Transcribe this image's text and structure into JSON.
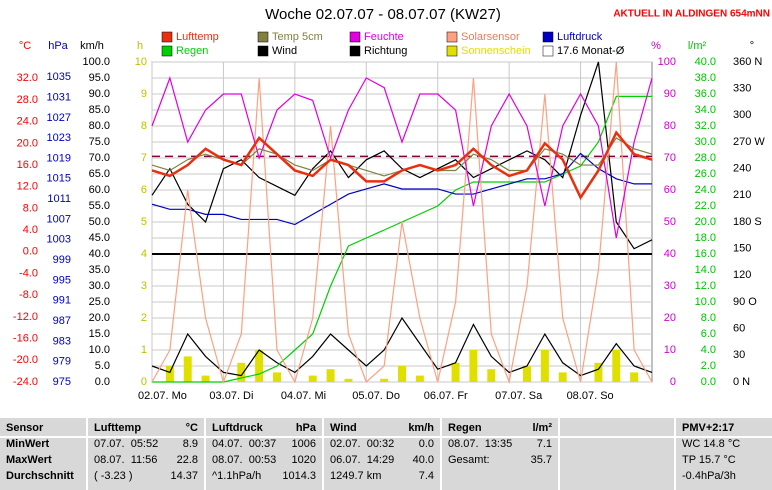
{
  "chart_data": {
    "type": "line",
    "title": "Woche 02.07.07 - 08.07.07 (KW27)",
    "subtitle": "AKTUELL IN ALDINGEN 654mNN",
    "grid": true,
    "xlim": [
      0,
      7
    ],
    "xticks": [
      {
        "value": 0,
        "label": "02.07. Mo"
      },
      {
        "value": 1,
        "label": "03.07. Di"
      },
      {
        "value": 2,
        "label": "04.07. Mi"
      },
      {
        "value": 3,
        "label": "05.07. Do"
      },
      {
        "value": 4,
        "label": "06.07. Fr"
      },
      {
        "value": 5,
        "label": "07.07. Sa"
      },
      {
        "value": 6,
        "label": "08.07. So"
      }
    ],
    "x": [
      0,
      0.25,
      0.5,
      0.75,
      1,
      1.25,
      1.5,
      1.75,
      2,
      2.25,
      2.5,
      2.75,
      3,
      3.25,
      3.5,
      3.75,
      4,
      4.25,
      4.5,
      4.75,
      5,
      5.25,
      5.5,
      5.75,
      6,
      6.25,
      6.5,
      6.75,
      7
    ],
    "axes": [
      {
        "label": "°C",
        "color": "#ff0000",
        "lim": [
          -24,
          35
        ],
        "ticks": [
          {
            "value": 32,
            "label": "32.0"
          },
          {
            "value": 28,
            "label": "28.0"
          },
          {
            "value": 24,
            "label": "24.0"
          },
          {
            "value": 20,
            "label": "20.0"
          },
          {
            "value": 16,
            "label": "16.0"
          },
          {
            "value": 12,
            "label": "12.0"
          },
          {
            "value": 8,
            "label": "8.0"
          },
          {
            "value": 4,
            "label": "4.0"
          },
          {
            "value": 0,
            "label": "0.0"
          },
          {
            "value": -4,
            "label": "-4.0"
          },
          {
            "value": -8,
            "label": "-8.0"
          },
          {
            "value": -12,
            "label": "-12.0"
          },
          {
            "value": -16,
            "label": "-16.0"
          },
          {
            "value": -20,
            "label": "-20.0"
          },
          {
            "value": -24,
            "label": "-24.0"
          }
        ]
      },
      {
        "label": "hPa",
        "color": "#0000c0",
        "lim": [
          975,
          1038
        ],
        "ticks": [
          1035,
          1031,
          1027,
          1023,
          1019,
          1015,
          1011,
          1007,
          1003,
          999,
          995,
          991,
          987,
          983,
          979,
          975
        ]
      },
      {
        "label": "km/h",
        "color": "#000000",
        "lim": [
          0,
          100
        ],
        "ticks": [
          {
            "value": 100,
            "label": "100.0"
          },
          {
            "value": 95,
            "label": "95.0"
          },
          {
            "value": 90,
            "label": "90.0"
          },
          {
            "value": 85,
            "label": "85.0"
          },
          {
            "value": 80,
            "label": "80.0"
          },
          {
            "value": 75,
            "label": "75.0"
          },
          {
            "value": 70,
            "label": "70.0"
          },
          {
            "value": 65,
            "label": "65.0"
          },
          {
            "value": 60,
            "label": "60.0"
          },
          {
            "value": 55,
            "label": "55.0"
          },
          {
            "value": 50,
            "label": "50.0"
          },
          {
            "value": 45,
            "label": "45.0"
          },
          {
            "value": 40,
            "label": "40.0"
          },
          {
            "value": 35,
            "label": "35.0"
          },
          {
            "value": 30,
            "label": "30.0"
          },
          {
            "value": 25,
            "label": "25.0"
          },
          {
            "value": 20,
            "label": "20.0"
          },
          {
            "value": 15,
            "label": "15.0"
          },
          {
            "value": 10,
            "label": "10.0"
          },
          {
            "value": 5,
            "label": "5.0"
          },
          {
            "value": 0,
            "label": "0.0"
          }
        ]
      },
      {
        "label": "h",
        "color": "#c0c000",
        "lim": [
          0,
          10
        ],
        "ticks": [
          10,
          9,
          8,
          7,
          6,
          5,
          4,
          3,
          2,
          1,
          0
        ]
      },
      {
        "label": "%",
        "color": "#d000d0",
        "lim": [
          0,
          100
        ],
        "ticks": [
          100,
          90,
          80,
          70,
          60,
          50,
          40,
          30,
          20,
          10,
          0
        ]
      },
      {
        "label": "l/m²",
        "color": "#00c000",
        "lim": [
          0,
          40
        ],
        "ticks": [
          {
            "value": 40,
            "label": "40.0"
          },
          {
            "value": 38,
            "label": "38.0"
          },
          {
            "value": 36,
            "label": "36.0"
          },
          {
            "value": 34,
            "label": "34.0"
          },
          {
            "value": 32,
            "label": "32.0"
          },
          {
            "value": 30,
            "label": "30.0"
          },
          {
            "value": 28,
            "label": "28.0"
          },
          {
            "value": 26,
            "label": "26.0"
          },
          {
            "value": 24,
            "label": "24.0"
          },
          {
            "value": 22,
            "label": "22.0"
          },
          {
            "value": 20,
            "label": "20.0"
          },
          {
            "value": 18,
            "label": "18.0"
          },
          {
            "value": 16,
            "label": "16.0"
          },
          {
            "value": 14,
            "label": "14.0"
          },
          {
            "value": 12,
            "label": "12.0"
          },
          {
            "value": 10,
            "label": "10.0"
          },
          {
            "value": 8,
            "label": "8.0"
          },
          {
            "value": 6,
            "label": "6.0"
          },
          {
            "value": 4,
            "label": "4.0"
          },
          {
            "value": 2,
            "label": "2.0"
          },
          {
            "value": 0,
            "label": "0.0"
          }
        ]
      },
      {
        "label": "°",
        "color": "#000000",
        "lim": [
          0,
          360
        ],
        "ticks": [
          {
            "value": 360,
            "label": "360 N"
          },
          330,
          300,
          {
            "value": 270,
            "label": "270 W"
          },
          240,
          210,
          {
            "value": 180,
            "label": "180 S"
          },
          150,
          120,
          {
            "value": 90,
            "label": "90 O"
          },
          60,
          30,
          {
            "value": 0,
            "label": "0 N"
          }
        ]
      }
    ],
    "series": [
      {
        "name": "Lufttemp",
        "color": "#e83010",
        "axis": "°C",
        "values": [
          15,
          14,
          16,
          19,
          17,
          16,
          21,
          18,
          15,
          14,
          17,
          16,
          13,
          13,
          15,
          16,
          15,
          16,
          19,
          16,
          14,
          15,
          20,
          17,
          10,
          15,
          22,
          18,
          17
        ]
      },
      {
        "name": "Temp 5cm",
        "color": "#808040",
        "axis": "°C",
        "values": [
          16,
          15,
          17,
          18,
          17,
          16,
          19,
          18,
          16,
          15,
          17,
          16,
          15,
          14,
          15,
          16,
          15,
          15,
          18,
          17,
          15,
          15,
          19,
          18,
          16,
          16,
          21,
          19,
          18
        ]
      },
      {
        "name": "Feuchte",
        "color": "#e000e0",
        "axis": "%",
        "values": [
          80,
          95,
          75,
          85,
          90,
          90,
          70,
          85,
          90,
          88,
          70,
          85,
          95,
          92,
          75,
          90,
          90,
          85,
          55,
          80,
          90,
          80,
          55,
          80,
          90,
          80,
          45,
          75,
          95
        ]
      },
      {
        "name": "Solarsensor",
        "color": "#ffa080",
        "axis": "%",
        "values": [
          0,
          10,
          60,
          20,
          0,
          15,
          95,
          10,
          0,
          20,
          80,
          15,
          0,
          5,
          50,
          20,
          0,
          25,
          95,
          15,
          0,
          30,
          90,
          20,
          0,
          35,
          100,
          10,
          0
        ]
      },
      {
        "name": "Luftdruck",
        "color": "#0000c0",
        "axis": "hPa",
        "values": [
          1010,
          1009,
          1009,
          1008,
          1008,
          1007,
          1007,
          1007,
          1006,
          1008,
          1010,
          1012,
          1013,
          1014,
          1013,
          1013,
          1013,
          1012,
          1012,
          1013,
          1014,
          1015,
          1015,
          1016,
          1020,
          1017,
          1015,
          1014,
          1014
        ]
      },
      {
        "name": "Regen",
        "color": "#00d000",
        "axis": "l/m²",
        "values": [
          0,
          0,
          0,
          0,
          0,
          0.5,
          1,
          2,
          4,
          6,
          12,
          17,
          18,
          19,
          20,
          21,
          22,
          24,
          25,
          25,
          25,
          25,
          25,
          26,
          27,
          30,
          35.7,
          35.7,
          35.7
        ]
      },
      {
        "name": "Wind",
        "color": "#000000",
        "axis": "km/h",
        "values": [
          5,
          3,
          15,
          8,
          3,
          2,
          10,
          6,
          3,
          8,
          15,
          10,
          5,
          10,
          20,
          12,
          4,
          6,
          18,
          8,
          3,
          5,
          15,
          6,
          2,
          4,
          12,
          5,
          3
        ]
      },
      {
        "name": "Richtung",
        "color": "#000000",
        "axis": "°",
        "values": [
          210,
          240,
          200,
          180,
          240,
          250,
          230,
          220,
          210,
          240,
          260,
          230,
          250,
          260,
          240,
          230,
          240,
          250,
          230,
          240,
          250,
          260,
          250,
          230,
          300,
          360,
          180,
          150,
          160
        ]
      },
      {
        "name": "Sonnenschein",
        "color": "#e0e000",
        "axis": "h",
        "type": "bar",
        "values": [
          0,
          0.5,
          0.8,
          0.2,
          0,
          0.6,
          1,
          0.3,
          0,
          0.2,
          0.4,
          0.1,
          0,
          0.1,
          0.5,
          0.2,
          0,
          0.6,
          1,
          0.4,
          0,
          0.5,
          1,
          0.3,
          0,
          0.6,
          1,
          0.3,
          0
        ]
      }
    ],
    "reference": {
      "name": "17.6 Monat-Ø",
      "value": 17.6,
      "axis": "°C",
      "color": "#800040",
      "dashed": true
    },
    "hline": {
      "value": 40,
      "axis": "km/h",
      "color": "#000000"
    }
  },
  "table": {
    "columns": [
      {
        "name": "Sensor"
      },
      {
        "name": "Lufttemp",
        "unit": "°C"
      },
      {
        "name": "Luftdruck",
        "unit": "hPa"
      },
      {
        "name": "Wind",
        "unit": "km/h"
      },
      {
        "name": "Regen",
        "unit": "l/m²"
      },
      {
        "name": "PMV+2:17"
      }
    ],
    "rows": [
      {
        "label": "MinWert",
        "cells": [
          [
            "07.07.  05:52",
            "8.9"
          ],
          [
            "04.07.  00:37",
            "1006"
          ],
          [
            "02.07.  00:32",
            "0.0"
          ],
          [
            "08.07.  13:35",
            "7.1"
          ],
          [
            "WC 14.8 °C"
          ]
        ]
      },
      {
        "label": "MaxWert",
        "cells": [
          [
            "08.07.  11:56",
            "22.8"
          ],
          [
            "08.07.  00:53",
            "1020"
          ],
          [
            "06.07.  14:29",
            "40.0"
          ],
          [
            "Gesamt:",
            "35.7"
          ],
          [
            "TP 15.7 °C"
          ]
        ]
      },
      {
        "label": "Durchschnitt",
        "cells": [
          [
            "( -3.23 )",
            "14.37"
          ],
          [
            "^1.1hPa/h",
            "1014.3"
          ],
          [
            "1249.7 km",
            "7.4"
          ],
          null,
          [
            "-0.4hPa/3h"
          ]
        ]
      }
    ]
  }
}
